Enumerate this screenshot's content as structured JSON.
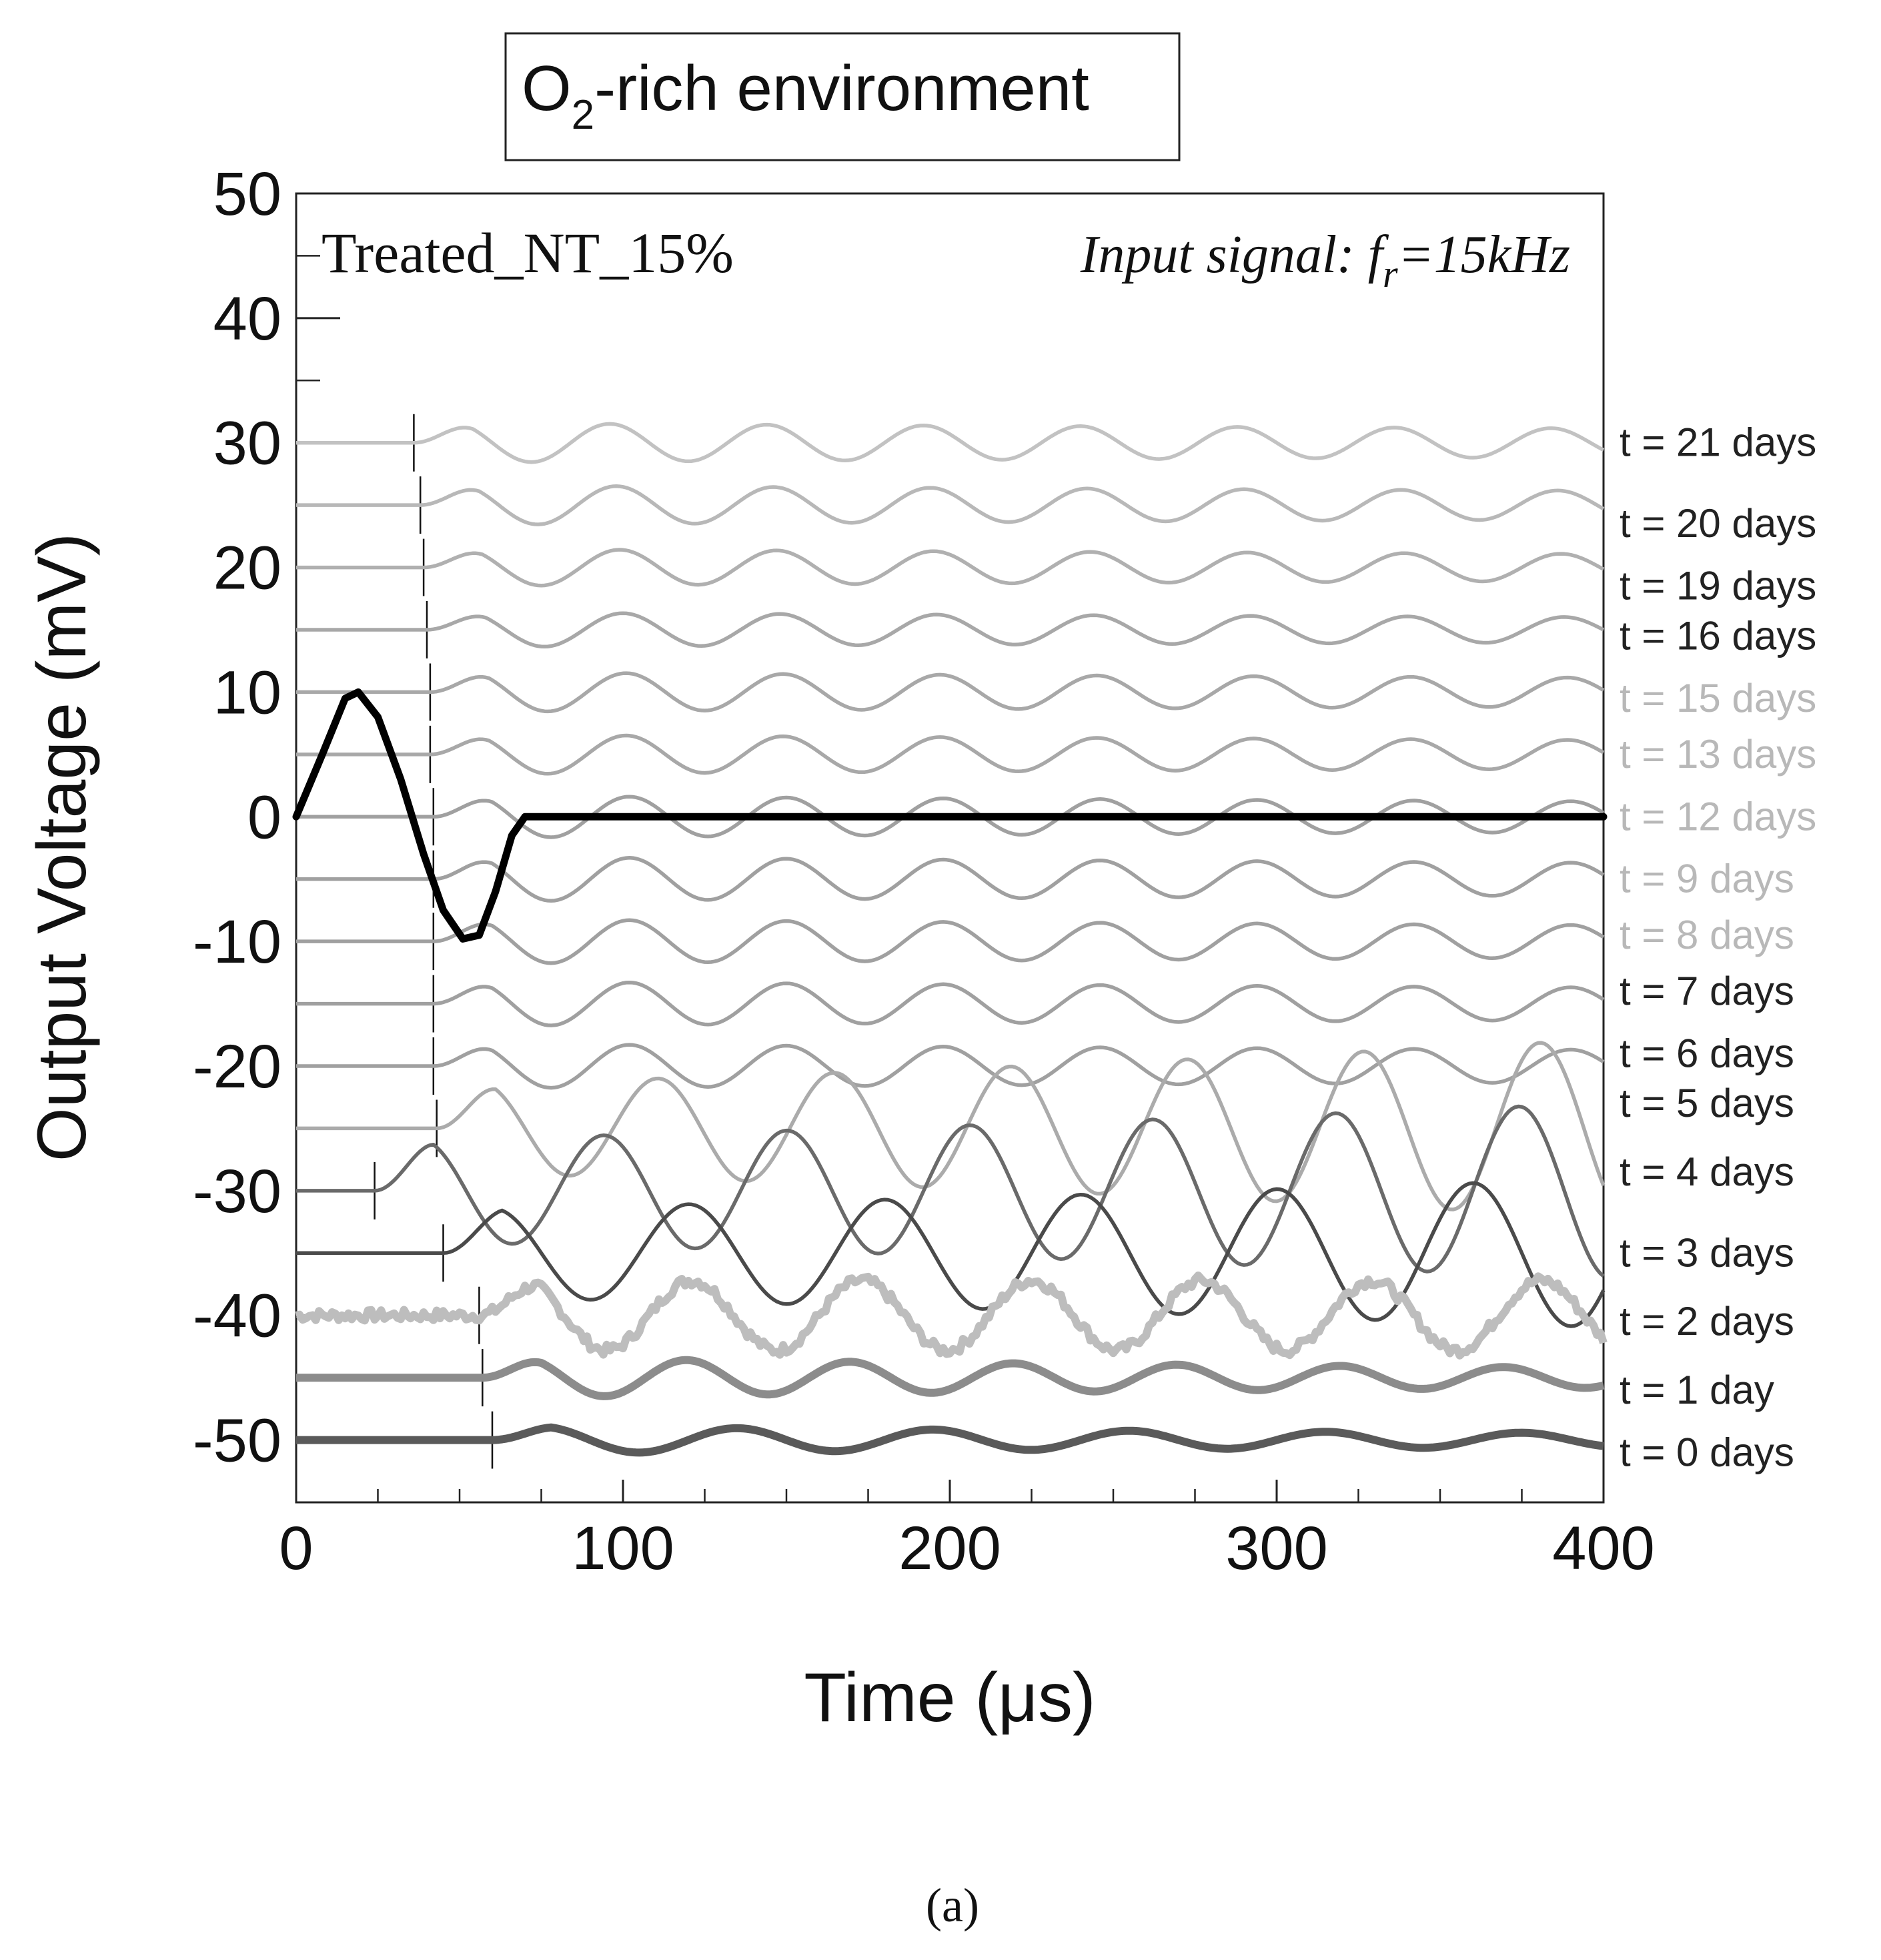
{
  "chart_data": {
    "type": "line",
    "title": "O₂-rich environment",
    "title_parts": {
      "main": "O",
      "subscript": "2",
      "rest": "-rich environment"
    },
    "sample_label": "Treated_NT_15%",
    "input_signal_note": {
      "prefix": "Input signal: ",
      "symbol": "f",
      "subscript": "r",
      "suffix": "=15kHz"
    },
    "xlabel": "Time (μs)",
    "ylabel": "Output Voltage (mV)",
    "panel_caption": "(a)",
    "xlim": [
      0,
      400
    ],
    "ylim": [
      -55,
      50
    ],
    "x_ticks": [
      0,
      100,
      200,
      300,
      400
    ],
    "x_tick_labels": [
      "0",
      "100",
      "200",
      "300",
      "400"
    ],
    "y_ticks": [
      50,
      40,
      30,
      20,
      10,
      0,
      -10,
      -20,
      -30,
      -40,
      -50
    ],
    "y_tick_labels": [
      "50",
      "40",
      "30",
      "20",
      "10",
      "0",
      "-10",
      "-20",
      "-30",
      "-40",
      "-50"
    ],
    "grid": false,
    "input_signal": {
      "name": "input",
      "color": "#000000",
      "points": [
        [
          0,
          0
        ],
        [
          8,
          5
        ],
        [
          15,
          9.5
        ],
        [
          19,
          10
        ],
        [
          25,
          8
        ],
        [
          32,
          3
        ],
        [
          39,
          -3
        ],
        [
          45,
          -7.5
        ],
        [
          51,
          -9.8
        ],
        [
          56,
          -9.5
        ],
        [
          61,
          -6
        ],
        [
          66,
          -1.5
        ],
        [
          70,
          0
        ],
        [
          400,
          0
        ]
      ]
    },
    "series": [
      {
        "label": "t = 21 days",
        "label_color": "#222222",
        "color": "#c2c2c2",
        "offset": 30,
        "amplitude": 1.6,
        "period": 48,
        "decay": 0.0009,
        "onset": 36,
        "arrival_marker": 36
      },
      {
        "label": "t = 20 days",
        "label_color": "#222222",
        "color": "#b8b8b8",
        "offset": 25,
        "amplitude": 1.6,
        "period": 48,
        "decay": 0.0009,
        "onset": 38,
        "arrival_marker": 38
      },
      {
        "label": "t = 19 days",
        "label_color": "#222222",
        "color": "#b0b0b0",
        "offset": 20,
        "amplitude": 1.5,
        "period": 48,
        "decay": 0.0009,
        "onset": 39,
        "arrival_marker": 39
      },
      {
        "label": "t = 16 days",
        "label_color": "#222222",
        "color": "#a8a8a8",
        "offset": 15,
        "amplitude": 1.4,
        "period": 48,
        "decay": 0.0009,
        "onset": 40,
        "arrival_marker": 40
      },
      {
        "label": "t = 15 days",
        "label_color": "#b8b8b8",
        "color": "#a8a8a8",
        "offset": 10,
        "amplitude": 1.6,
        "period": 48,
        "decay": 0.0009,
        "onset": 41,
        "arrival_marker": 41
      },
      {
        "label": "t = 13 days",
        "label_color": "#b8b8b8",
        "color": "#a8a8a8",
        "offset": 5,
        "amplitude": 1.6,
        "period": 48,
        "decay": 0.0009,
        "onset": 41,
        "arrival_marker": 41
      },
      {
        "label": "t = 12 days",
        "label_color": "#b8b8b8",
        "color": "#a0a0a0",
        "offset": 0,
        "amplitude": 1.7,
        "period": 48,
        "decay": 0.0009,
        "onset": 42,
        "arrival_marker": 42
      },
      {
        "label": "t = 9 days",
        "label_color": "#b8b8b8",
        "color": "#a0a0a0",
        "offset": -5,
        "amplitude": 1.8,
        "period": 48,
        "decay": 0.0009,
        "onset": 42,
        "arrival_marker": 42
      },
      {
        "label": "t = 8 days",
        "label_color": "#b8b8b8",
        "color": "#a0a0a0",
        "offset": -10,
        "amplitude": 1.8,
        "period": 48,
        "decay": 0.0009,
        "onset": 42,
        "arrival_marker": 42
      },
      {
        "label": "t = 7 days",
        "label_color": "#222222",
        "color": "#a0a0a0",
        "offset": -15,
        "amplitude": 1.8,
        "period": 48,
        "decay": 0.0009,
        "onset": 42,
        "arrival_marker": 42
      },
      {
        "label": "t = 6 days",
        "label_color": "#222222",
        "color": "#a0a0a0",
        "offset": -20,
        "amplitude": 1.8,
        "period": 48,
        "decay": 0.0009,
        "onset": 42,
        "arrival_marker": 42
      },
      {
        "label": "t = 5 days",
        "label_color": "#222222",
        "color": "#ababab",
        "offset": -25,
        "amplitude": 3.5,
        "period": 54,
        "decay": -0.002,
        "onset": 43,
        "arrival_marker": 43
      },
      {
        "label": "t = 4 days",
        "label_color": "#222222",
        "color": "#6a6a6a",
        "offset": -30,
        "amplitude": 4.0,
        "period": 56,
        "decay": -0.0015,
        "onset": 24,
        "arrival_marker": 24
      },
      {
        "label": "t = 3 days",
        "label_color": "#222222",
        "color": "#4a4a4a",
        "offset": -35,
        "amplitude": 3.5,
        "period": 60,
        "decay": -0.0015,
        "onset": 45,
        "arrival_marker": 45
      },
      {
        "label": "t = 2 days",
        "label_color": "#222222",
        "color": "#bdbdbd",
        "offset": -40,
        "amplitude": 2.8,
        "period": 52,
        "decay": 0.0,
        "onset": 56,
        "arrival_marker": 56,
        "thick": true,
        "noisy": true
      },
      {
        "label": "t = 1 day",
        "label_color": "#222222",
        "color": "#8c8c8c",
        "offset": -45,
        "amplitude": 1.6,
        "period": 50,
        "decay": 0.002,
        "onset": 57,
        "arrival_marker": 57,
        "thick": true
      },
      {
        "label": "t = 0 days",
        "label_color": "#222222",
        "color": "#5a5a5a",
        "offset": -50,
        "amplitude": 1.1,
        "period": 60,
        "decay": 0.002,
        "onset": 60,
        "arrival_marker": 60,
        "thick": true
      }
    ],
    "series_label_y": [
      30,
      23.5,
      18.5,
      14.5,
      9.5,
      5,
      0,
      -5,
      -9.5,
      -14,
      -19,
      -23,
      -28.5,
      -35,
      -40.5,
      -46,
      -51
    ]
  }
}
